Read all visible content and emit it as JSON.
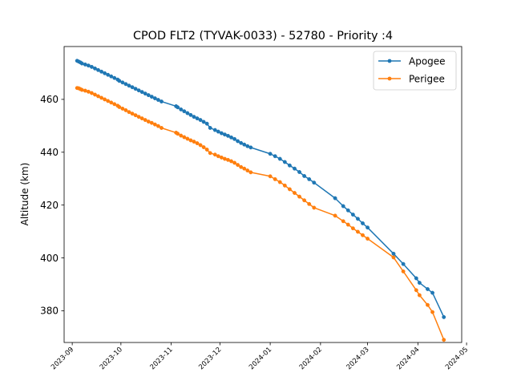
{
  "chart_data": {
    "type": "line",
    "title": "CPOD FLT2 (TYVAK-0033) - 52780 - Priority :4",
    "xlabel": "",
    "ylabel": "Altitude (km)",
    "x_axis_type": "date",
    "xlim": [
      "2023-08-27",
      "2024-04-28"
    ],
    "ylim": [
      368,
      480
    ],
    "x_ticks": [
      "2023-09-01",
      "2023-10-01",
      "2023-11-01",
      "2023-12-01",
      "2024-01-01",
      "2024-02-01",
      "2024-03-01",
      "2024-04-01",
      "2024-05-01"
    ],
    "x_tick_labels": [
      "2023-09",
      "2023-10",
      "2023-11",
      "2023-12",
      "2024-01",
      "2024-02",
      "2024-03",
      "2024-04",
      "2024-05"
    ],
    "y_ticks": [
      380,
      400,
      420,
      440,
      460
    ],
    "y_tick_labels": [
      "380",
      "400",
      "420",
      "440",
      "460"
    ],
    "grid": false,
    "legend_position": "top-right",
    "series": [
      {
        "name": "Apogee",
        "color": "#1f77b4",
        "marker": "circle",
        "x": [
          "2023-09-04",
          "2023-09-05",
          "2023-09-06",
          "2023-09-07",
          "2023-09-09",
          "2023-09-11",
          "2023-09-13",
          "2023-09-15",
          "2023-09-17",
          "2023-09-19",
          "2023-09-21",
          "2023-09-23",
          "2023-09-25",
          "2023-09-27",
          "2023-09-29",
          "2023-09-30",
          "2023-10-02",
          "2023-10-04",
          "2023-10-06",
          "2023-10-08",
          "2023-10-10",
          "2023-10-12",
          "2023-10-14",
          "2023-10-16",
          "2023-10-18",
          "2023-10-20",
          "2023-10-22",
          "2023-10-24",
          "2023-10-26",
          "2023-11-04",
          "2023-11-05",
          "2023-11-07",
          "2023-11-09",
          "2023-11-11",
          "2023-11-13",
          "2023-11-15",
          "2023-11-17",
          "2023-11-19",
          "2023-11-21",
          "2023-11-23",
          "2023-11-25",
          "2023-11-28",
          "2023-11-30",
          "2023-12-02",
          "2023-12-04",
          "2023-12-06",
          "2023-12-08",
          "2023-12-10",
          "2023-12-12",
          "2023-12-14",
          "2023-12-16",
          "2023-12-18",
          "2023-12-20",
          "2024-01-01",
          "2024-01-04",
          "2024-01-07",
          "2024-01-10",
          "2024-01-13",
          "2024-01-16",
          "2024-01-19",
          "2024-01-22",
          "2024-01-25",
          "2024-01-28",
          "2024-02-10",
          "2024-02-15",
          "2024-02-18",
          "2024-02-21",
          "2024-02-24",
          "2024-02-27",
          "2024-03-01",
          "2024-03-17",
          "2024-03-23",
          "2024-03-31",
          "2024-04-02",
          "2024-04-07",
          "2024-04-10",
          "2024-04-17"
        ],
        "values": [
          474.6,
          474.3,
          474.0,
          473.6,
          473.2,
          472.8,
          472.3,
          471.7,
          471.1,
          470.5,
          469.9,
          469.3,
          468.7,
          468.1,
          467.5,
          467.0,
          466.4,
          465.8,
          465.2,
          464.6,
          464.0,
          463.4,
          462.8,
          462.2,
          461.6,
          461.0,
          460.4,
          459.8,
          459.2,
          457.4,
          457.0,
          456.2,
          455.5,
          454.8,
          454.1,
          453.4,
          452.8,
          452.2,
          451.5,
          450.8,
          449.2,
          448.4,
          447.8,
          447.2,
          446.7,
          446.2,
          445.6,
          445.0,
          444.2,
          443.5,
          442.9,
          442.3,
          441.8,
          439.4,
          438.5,
          437.5,
          436.3,
          435.0,
          433.8,
          432.5,
          431.0,
          429.8,
          428.5,
          422.6,
          419.6,
          418.0,
          416.4,
          414.8,
          413.1,
          411.5,
          401.6,
          397.7,
          392.3,
          390.6,
          388.2,
          386.8,
          377.6
        ]
      },
      {
        "name": "Perigee",
        "color": "#ff7f0e",
        "marker": "circle",
        "x": [
          "2023-09-04",
          "2023-09-05",
          "2023-09-06",
          "2023-09-07",
          "2023-09-09",
          "2023-09-11",
          "2023-09-13",
          "2023-09-15",
          "2023-09-17",
          "2023-09-19",
          "2023-09-21",
          "2023-09-23",
          "2023-09-25",
          "2023-09-27",
          "2023-09-29",
          "2023-09-30",
          "2023-10-02",
          "2023-10-04",
          "2023-10-06",
          "2023-10-08",
          "2023-10-10",
          "2023-10-12",
          "2023-10-14",
          "2023-10-16",
          "2023-10-18",
          "2023-10-20",
          "2023-10-22",
          "2023-10-24",
          "2023-10-26",
          "2023-11-04",
          "2023-11-05",
          "2023-11-07",
          "2023-11-09",
          "2023-11-11",
          "2023-11-13",
          "2023-11-15",
          "2023-11-17",
          "2023-11-19",
          "2023-11-21",
          "2023-11-23",
          "2023-11-25",
          "2023-11-28",
          "2023-11-30",
          "2023-12-02",
          "2023-12-04",
          "2023-12-06",
          "2023-12-08",
          "2023-12-10",
          "2023-12-12",
          "2023-12-14",
          "2023-12-16",
          "2023-12-18",
          "2023-12-20",
          "2024-01-01",
          "2024-01-04",
          "2024-01-07",
          "2024-01-10",
          "2024-01-13",
          "2024-01-16",
          "2024-01-19",
          "2024-01-22",
          "2024-01-25",
          "2024-01-28",
          "2024-02-10",
          "2024-02-15",
          "2024-02-18",
          "2024-02-21",
          "2024-02-24",
          "2024-02-27",
          "2024-03-01",
          "2024-03-17",
          "2024-03-23",
          "2024-03-31",
          "2024-04-02",
          "2024-04-07",
          "2024-04-10",
          "2024-04-17"
        ],
        "values": [
          464.3,
          464.2,
          463.9,
          463.6,
          463.3,
          462.9,
          462.4,
          461.8,
          461.2,
          460.6,
          460.0,
          459.4,
          458.8,
          458.2,
          457.6,
          457.1,
          456.5,
          455.9,
          455.2,
          454.6,
          454.0,
          453.4,
          452.8,
          452.2,
          451.6,
          451.1,
          450.5,
          449.9,
          449.2,
          447.4,
          447.0,
          446.3,
          445.7,
          445.1,
          444.5,
          444.0,
          443.4,
          442.7,
          441.9,
          441.0,
          439.7,
          439.1,
          438.5,
          438.0,
          437.5,
          437.1,
          436.6,
          436.0,
          435.2,
          434.4,
          433.8,
          433.1,
          432.4,
          430.9,
          429.8,
          428.7,
          427.4,
          426.0,
          424.6,
          423.2,
          421.8,
          420.4,
          419.0,
          416.0,
          413.9,
          412.6,
          411.2,
          409.9,
          408.6,
          407.3,
          400.2,
          394.9,
          387.8,
          385.9,
          382.2,
          379.5,
          369.0
        ]
      }
    ]
  }
}
